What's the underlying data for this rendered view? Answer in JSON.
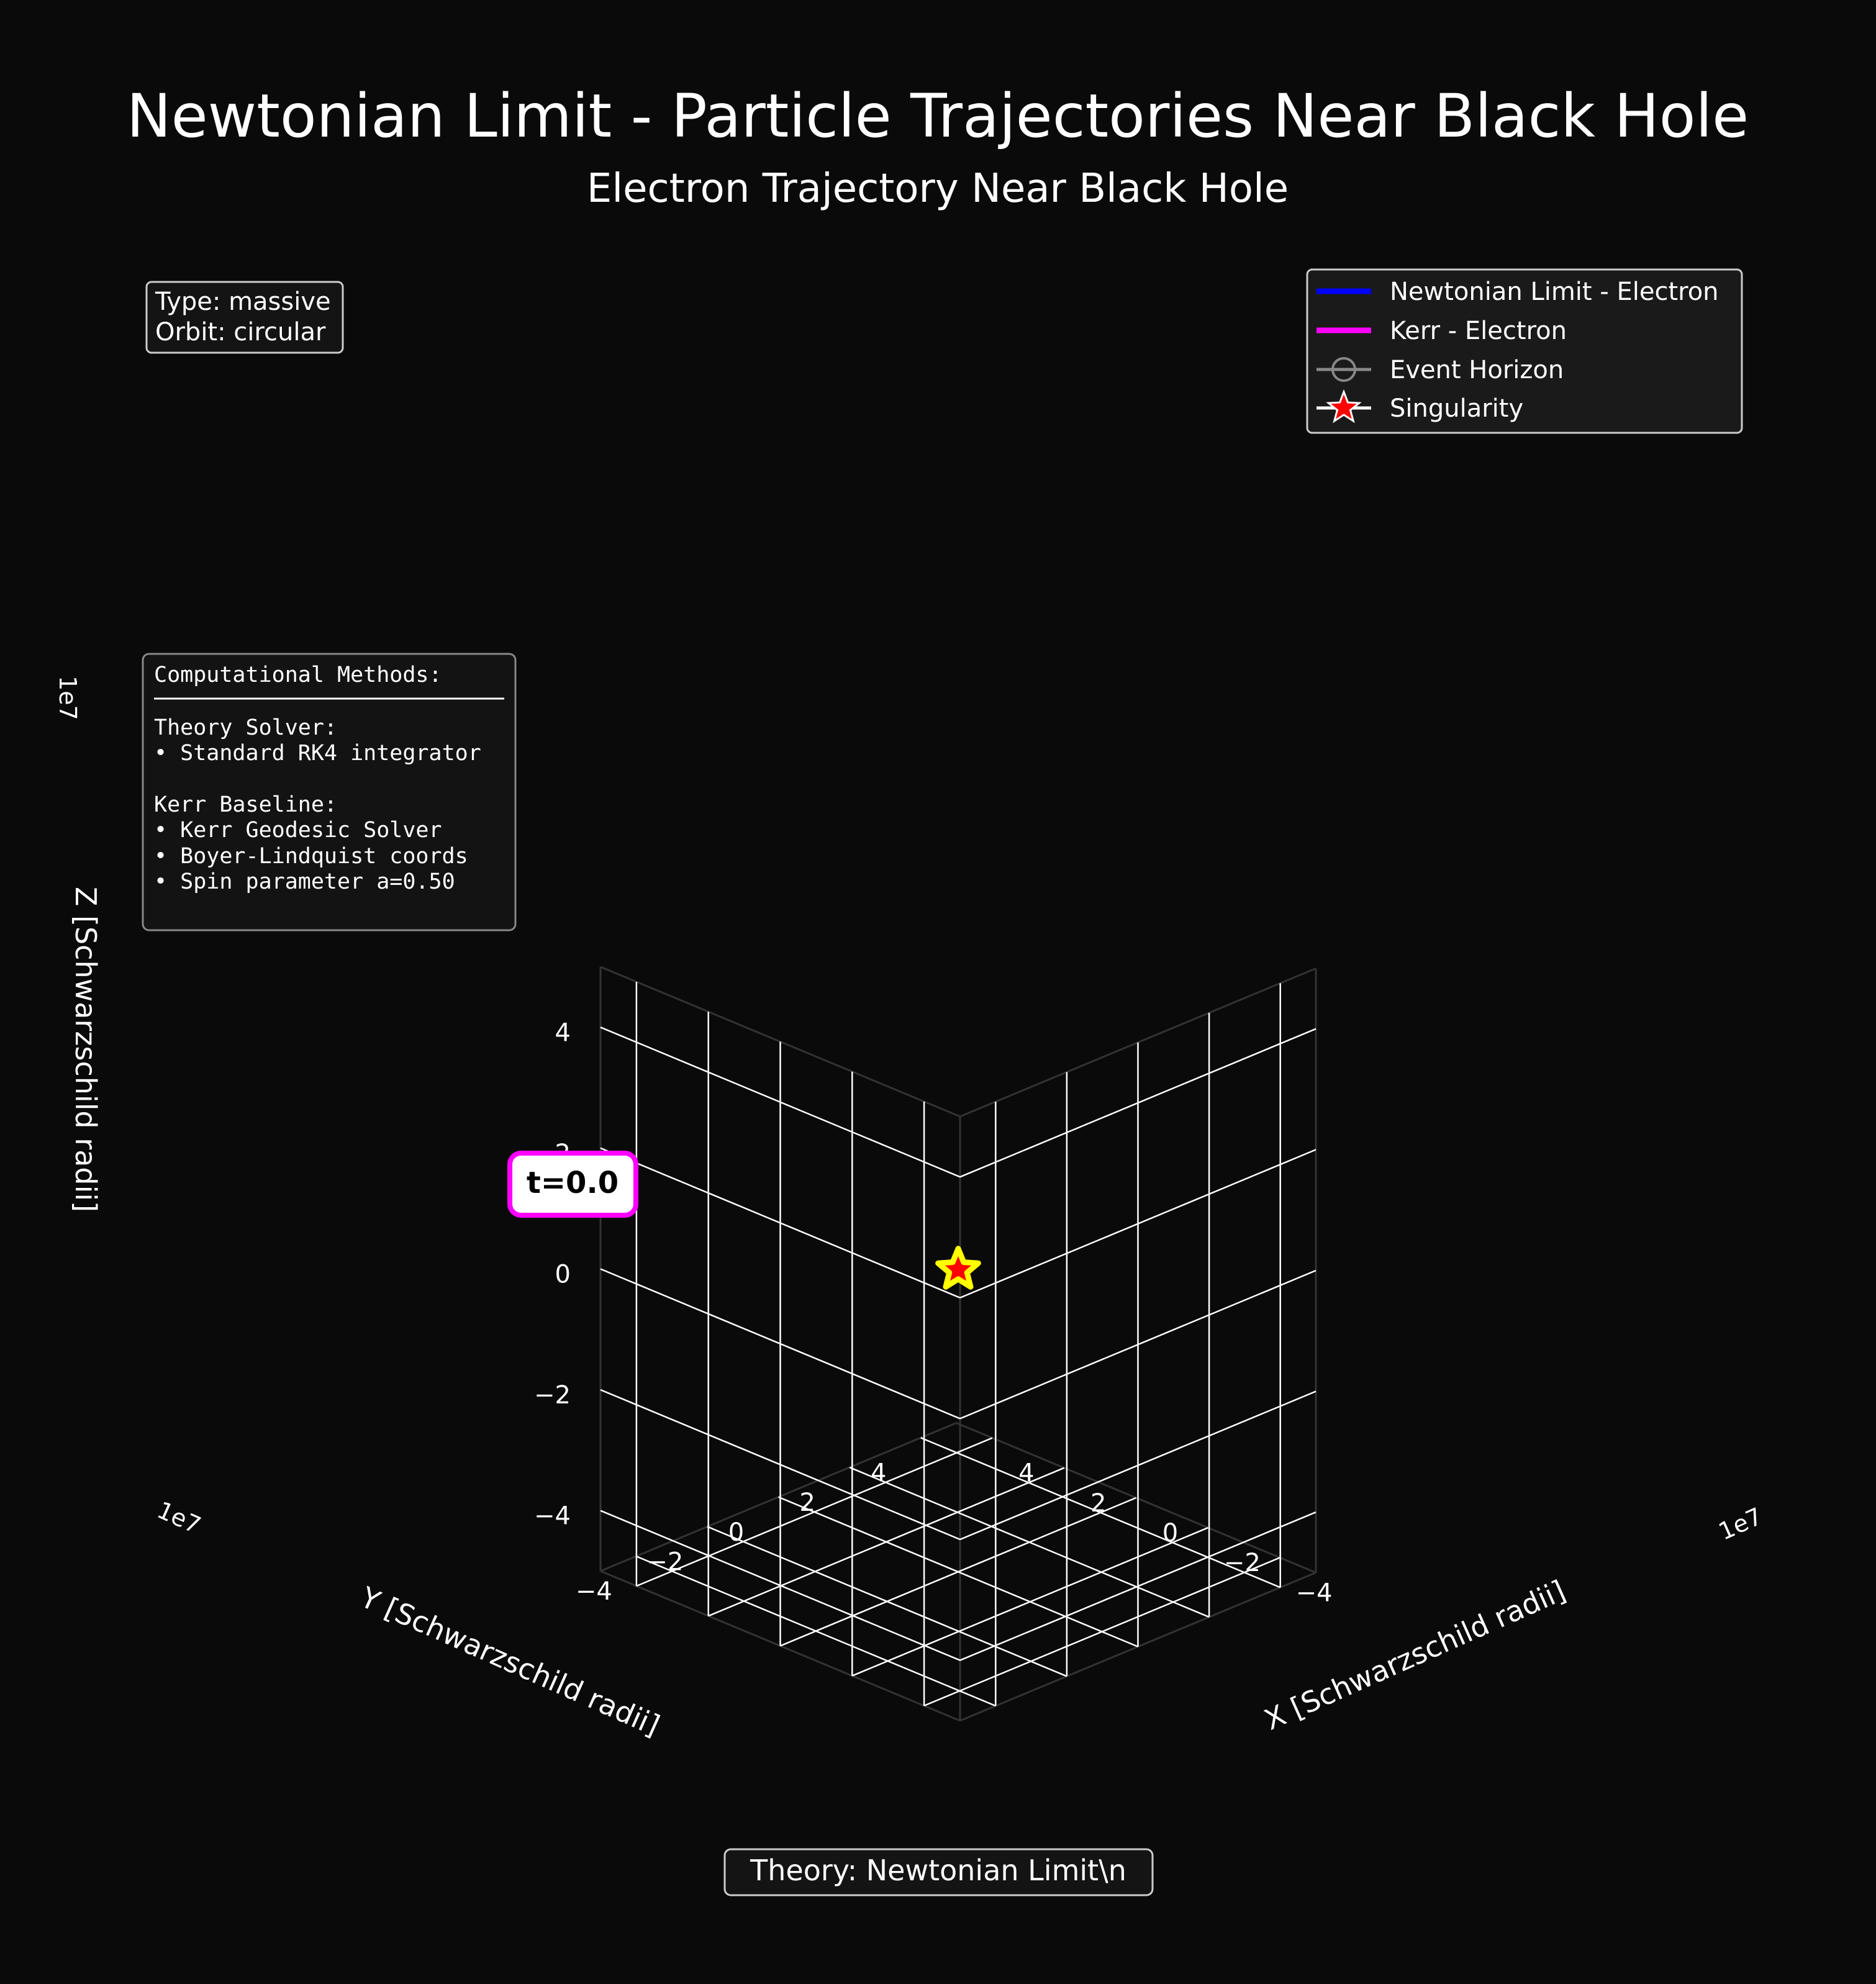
{
  "chart_data": {
    "type": "line3d",
    "title": "Newtonian Limit - Particle Trajectories Near Black Hole",
    "subtitle": "Electron Trajectory Near Black Hole",
    "xlabel": "X [Schwarzschild radii]",
    "ylabel": "Y [Schwarzschild radii]",
    "zlabel": "Z [Schwarzschild radii]",
    "axis_multiplier": "1e7",
    "xlim": [
      -5,
      5
    ],
    "ylim": [
      -5,
      5
    ],
    "zlim": [
      -5,
      5
    ],
    "x_ticks": [
      "−4",
      "−2",
      "0",
      "2",
      "4"
    ],
    "y_ticks": [
      "−4",
      "−2",
      "0",
      "2",
      "4"
    ],
    "z_ticks": [
      "−4",
      "−2",
      "0",
      "2",
      "4"
    ],
    "grid": true,
    "legend_position": "top-right",
    "series": [
      {
        "name": "Newtonian Limit - Electron",
        "color": "#0000ff",
        "style": "line",
        "points": []
      },
      {
        "name": "Kerr - Electron",
        "color": "#ff00ff",
        "style": "line",
        "points": []
      },
      {
        "name": "Event Horizon",
        "color": "#888888",
        "style": "circle-marker"
      },
      {
        "name": "Singularity",
        "color": "#ff0000",
        "style": "star-marker",
        "points": [
          [
            0,
            0,
            0
          ]
        ]
      }
    ],
    "singularity_marker": {
      "x": 0,
      "y": 0,
      "z": 0,
      "fill": "#ff0000",
      "edge": "#ffff00"
    },
    "time_label": "t=0.0"
  },
  "info_box": {
    "line1": "Type: massive",
    "line2": "Orbit: circular"
  },
  "methods_box": {
    "heading": "Computational Methods:",
    "theory_heading": "Theory Solver:",
    "theory_item1": "• Standard RK4 integrator",
    "kerr_heading": "Kerr Baseline:",
    "kerr_item1": "• Kerr Geodesic Solver",
    "kerr_item2": "• Boyer-Lindquist coords",
    "kerr_item3": "• Spin parameter a=0.50"
  },
  "footer": {
    "theory_label": "Theory: Newtonian Limit\\n"
  }
}
